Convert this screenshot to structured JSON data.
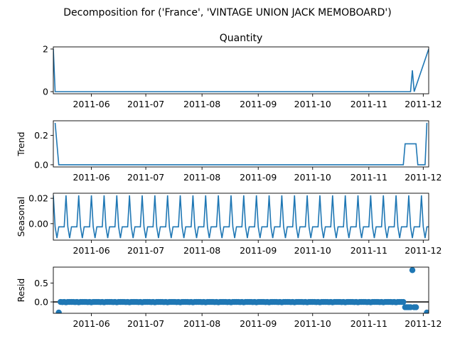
{
  "figure": {
    "suptitle": "Decomposition for ('France', 'VINTAGE UNION JACK MEMOBOARD')"
  },
  "colors": {
    "series": "#1f77b4",
    "zero_line": "#000000",
    "axes": "#000000"
  },
  "chart_data": [
    {
      "type": "line",
      "title": "Quantity",
      "ylabel": "",
      "xlim": [
        "2011-05-11",
        "2011-12-04"
      ],
      "ylim": [
        -0.1,
        2.1
      ],
      "yticks": [
        0,
        2
      ],
      "xticks": [
        "2011-06",
        "2011-07",
        "2011-08",
        "2011-09",
        "2011-10",
        "2011-11",
        "2011-12"
      ],
      "x": [
        "2011-05-11",
        "2011-05-12",
        "2011-11-24",
        "2011-11-25",
        "2011-11-26",
        "2011-12-04"
      ],
      "values": [
        2,
        0,
        0,
        1,
        0,
        2
      ]
    },
    {
      "type": "line",
      "title": "",
      "ylabel": "Trend",
      "xlim": [
        "2011-05-11",
        "2011-12-04"
      ],
      "ylim": [
        -0.015,
        0.3
      ],
      "yticks": [
        0.0,
        0.2
      ],
      "xticks": [
        "2011-06",
        "2011-07",
        "2011-08",
        "2011-09",
        "2011-10",
        "2011-11",
        "2011-12"
      ],
      "x": [
        "2011-05-12",
        "2011-05-13",
        "2011-05-14",
        "2011-11-20",
        "2011-11-21",
        "2011-11-27",
        "2011-11-28",
        "2011-12-02",
        "2011-12-03"
      ],
      "values": [
        0.286,
        0.143,
        0.0,
        0.0,
        0.143,
        0.143,
        0.0,
        0.0,
        0.286
      ]
    },
    {
      "type": "line",
      "title": "",
      "ylabel": "Seasonal",
      "xlim": [
        "2011-05-11",
        "2011-12-04"
      ],
      "ylim": [
        -0.013,
        0.024
      ],
      "yticks": [
        0.0,
        0.02
      ],
      "xticks": [
        "2011-06",
        "2011-07",
        "2011-08",
        "2011-09",
        "2011-10",
        "2011-11",
        "2011-12"
      ],
      "period_days": 7,
      "start": "2011-05-11",
      "pattern": [
        0.0223,
        -0.0025,
        -0.0114,
        -0.0025,
        -0.0025,
        -0.0025,
        -0.0025
      ]
    },
    {
      "type": "scatter",
      "title": "",
      "ylabel": "Resid",
      "xlim": [
        "2011-05-11",
        "2011-12-04"
      ],
      "ylim": [
        -0.3,
        0.92
      ],
      "yticks": [
        0.0,
        0.5
      ],
      "xticks": [
        "2011-06",
        "2011-07",
        "2011-08",
        "2011-09",
        "2011-10",
        "2011-11",
        "2011-12"
      ],
      "zero_line": true,
      "x": [
        "2011-05-14",
        "2011-11-21",
        "2011-11-22",
        "2011-11-23",
        "2011-11-24",
        "2011-11-25",
        "2011-11-26",
        "2011-11-27",
        "2011-12-03"
      ],
      "values": [
        -0.28,
        -0.14,
        -0.14,
        -0.14,
        -0.14,
        0.84,
        -0.14,
        -0.14,
        -0.28
      ],
      "fill_start": "2011-05-15",
      "fill_end": "2011-11-20",
      "fill_value": 0.0,
      "fill_pattern": [
        0.0,
        -0.005,
        0.0,
        -0.01,
        0.0,
        0.0,
        0.0
      ]
    }
  ]
}
